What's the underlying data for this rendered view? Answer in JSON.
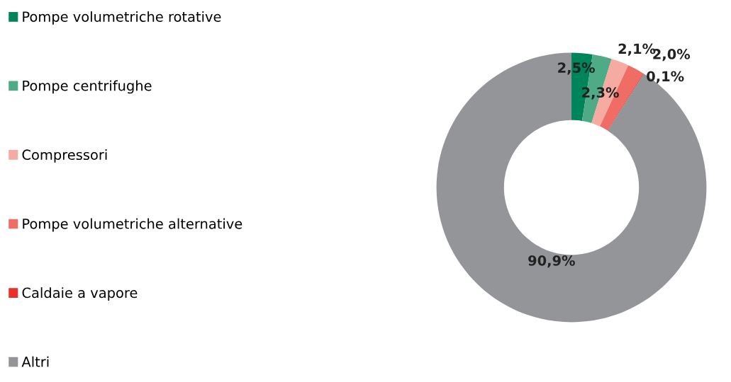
{
  "chart_data": {
    "type": "donut",
    "categories": [
      "Pompe volumetriche rotative",
      "Pompe centrifughe",
      "Compressori",
      "Pompe volumetriche alternative",
      "Caldaie a vapore",
      "Altri"
    ],
    "values": [
      2.5,
      2.3,
      2.1,
      2.0,
      0.1,
      90.9
    ],
    "colors": [
      "#00845a",
      "#4fab86",
      "#f5aaa2",
      "#f06d66",
      "#e8312a",
      "#949598"
    ],
    "value_labels": [
      "2,5%",
      "2,3%",
      "2,1%",
      "2,0%",
      "0,1%",
      "90,9%"
    ],
    "legend": "left"
  }
}
